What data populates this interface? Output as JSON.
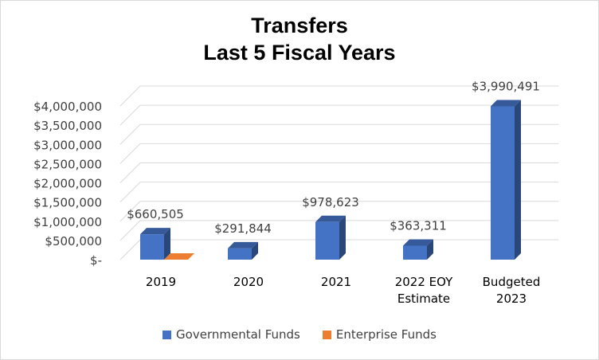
{
  "chart_data": {
    "type": "bar",
    "title": [
      "Transfers",
      "Last 5 Fiscal Years"
    ],
    "categories": [
      [
        "2019"
      ],
      [
        "2020"
      ],
      [
        "2021"
      ],
      [
        "2022 EOY",
        "Estimate"
      ],
      [
        "Budgeted",
        "2023"
      ]
    ],
    "series": [
      {
        "name": "Governmental Funds",
        "color": "#4472c4",
        "values": [
          660505,
          291844,
          978623,
          363311,
          3990491
        ],
        "labels": [
          "$660,505",
          "$291,844",
          "$978,623",
          "$363,311",
          "$3,990,491"
        ]
      },
      {
        "name": "Enterprise Funds",
        "color": "#ed7d31",
        "values": [
          0,
          0,
          0,
          0,
          0
        ],
        "labels": [
          "",
          "",
          "",
          "",
          ""
        ]
      }
    ],
    "ylim": [
      0,
      4000000
    ],
    "yticks": [
      0,
      500000,
      1000000,
      1500000,
      2000000,
      2500000,
      3000000,
      3500000,
      4000000
    ],
    "ytick_labels": [
      "$-",
      "$500,000",
      "$1,000,000",
      "$1,500,000",
      "$2,000,000",
      "$2,500,000",
      "$3,000,000",
      "$3,500,000",
      "$4,000,000"
    ],
    "grid": true,
    "legend_position": "bottom",
    "style": "3d-column"
  }
}
